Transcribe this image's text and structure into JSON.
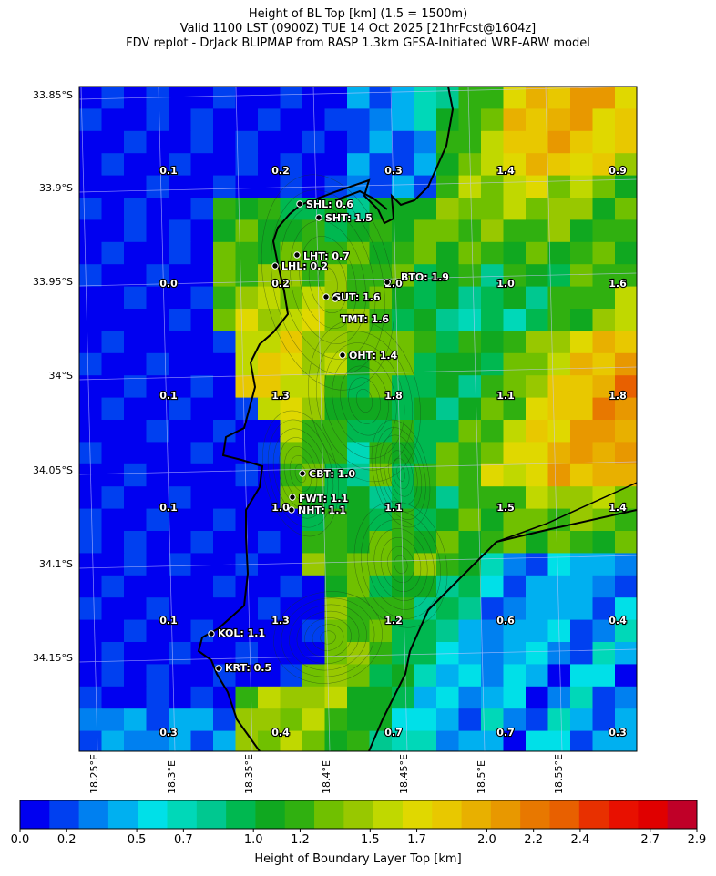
{
  "title": {
    "line1": "Height of BL Top [km] (1.5 = 1500m)",
    "line2": "Valid 1100 LST (0900Z) TUE 14 Oct 2025 [21hrFcst@1604z]",
    "line3": "FDV replot - DrJack BLIPMAP from RASP 1.3km GFSA-Initiated WRF-ARW model"
  },
  "lat_labels": [
    "33.85°S",
    "33.9°S",
    "33.95°S",
    "34°S",
    "34.05°S",
    "34.1°S",
    "34.15°S"
  ],
  "lon_labels": [
    "18.25°E",
    "18.3°E",
    "18.35°E",
    "18.4°E",
    "18.45°E",
    "18.5°E",
    "18.55°E"
  ],
  "sample_values": [
    [
      "0.1",
      "0.2",
      "0.3",
      "1.4",
      "0.9"
    ],
    [
      "0.0",
      "0.2",
      "2.0",
      "1.0",
      "1.6"
    ],
    [
      "0.1",
      "1.3",
      "1.8",
      "1.1",
      "1.8"
    ],
    [
      "0.1",
      "1.0",
      "1.1",
      "1.5",
      "1.4"
    ],
    [
      "0.1",
      "1.3",
      "1.2",
      "0.6",
      "0.4"
    ],
    [
      "0.3",
      "0.4",
      "0.7",
      "0.7",
      "0.3"
    ]
  ],
  "stations": [
    {
      "label": "SHL: 0.6"
    },
    {
      "label": "SHT: 1.5"
    },
    {
      "label": "LHT: 0.7"
    },
    {
      "label": "LHL: 0.2"
    },
    {
      "label": "BTO: 1.9"
    },
    {
      "label": "GUT: 1.6"
    },
    {
      "label": "TMT: 1.6"
    },
    {
      "label": "OHT: 1.4"
    },
    {
      "label": "CBT: 1.0"
    },
    {
      "label": "FWT: 1.1"
    },
    {
      "label": "NHT: 1.1"
    },
    {
      "label": "KOL: 1.1"
    },
    {
      "label": "KRT: 0.5"
    }
  ],
  "colorbar": {
    "title": "Height of Boundary Layer Top [km]",
    "ticks": [
      "0.0",
      "0.2",
      "0.5",
      "0.7",
      "1.0",
      "1.2",
      "1.5",
      "1.7",
      "2.0",
      "2.2",
      "2.4",
      "2.7",
      "2.9"
    ],
    "colors": [
      "#0000f0",
      "#0040f0",
      "#0080f0",
      "#00b0f0",
      "#00e0e8",
      "#00d8b8",
      "#00c890",
      "#00b850",
      "#10a820",
      "#30b010",
      "#70c000",
      "#98c800",
      "#c0d800",
      "#e0d800",
      "#e8c800",
      "#e8b000",
      "#e89800",
      "#e87800",
      "#e86000",
      "#e83000",
      "#e81000",
      "#e00000",
      "#c00028"
    ]
  }
}
